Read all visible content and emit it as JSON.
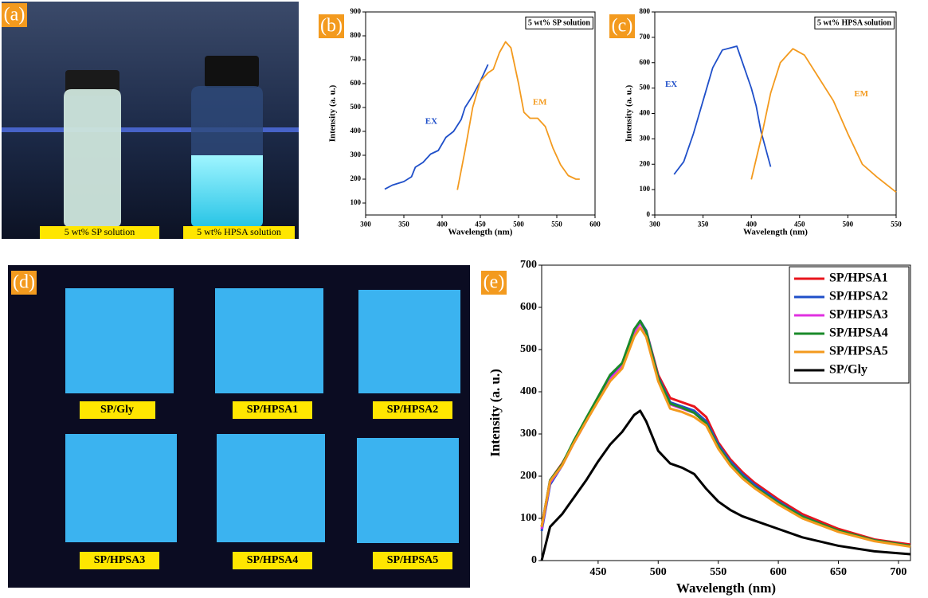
{
  "panels": [
    "(a)",
    "(b)",
    "(c)",
    "(d)",
    "(e)"
  ],
  "photo_a": {
    "captions": [
      "5 wt% SP solution",
      "5 wt% HPSA solution"
    ]
  },
  "photo_d": {
    "labels": [
      "SP/Gly",
      "SP/HPSA1",
      "SP/HPSA2",
      "SP/HPSA3",
      "SP/HPSA4",
      "SP/HPSA5"
    ]
  },
  "chart_data": [
    {
      "type": "line",
      "title": "5 wt% SP solution",
      "x_label": "Wavelength (nm)",
      "y_label": "Intensity (a. u.)",
      "xlim": [
        300,
        600
      ],
      "xticks": [
        300,
        350,
        400,
        450,
        500,
        550,
        600
      ],
      "ylim": [
        50,
        900
      ],
      "yticks": [
        100,
        200,
        300,
        400,
        500,
        600,
        700,
        800,
        900
      ],
      "series": [
        {
          "name": "EX",
          "color": "#1f4fc9",
          "x": [
            325,
            335,
            350,
            360,
            365,
            375,
            385,
            395,
            405,
            415,
            425,
            430,
            440,
            450,
            460
          ],
          "values": [
            158,
            175,
            190,
            210,
            250,
            270,
            305,
            320,
            375,
            400,
            450,
            500,
            550,
            610,
            680
          ]
        },
        {
          "name": "EM",
          "color": "#f39a1e",
          "x": [
            420,
            430,
            440,
            450,
            460,
            467,
            475,
            483,
            490,
            500,
            507,
            515,
            525,
            535,
            545,
            555,
            565,
            575,
            580
          ],
          "values": [
            155,
            320,
            500,
            610,
            645,
            660,
            730,
            775,
            750,
            600,
            480,
            455,
            455,
            420,
            330,
            260,
            215,
            200,
            200
          ]
        }
      ]
    },
    {
      "type": "line",
      "title": "5 wt% HPSA solution",
      "x_label": "Wavelength (nm)",
      "y_label": "Intensity (a. u.)",
      "xlim": [
        300,
        550
      ],
      "xticks": [
        300,
        350,
        400,
        450,
        500,
        550
      ],
      "ylim": [
        0,
        800
      ],
      "yticks": [
        0,
        100,
        200,
        300,
        400,
        500,
        600,
        700,
        800
      ],
      "series": [
        {
          "name": "EX",
          "color": "#1f4fc9",
          "x": [
            320,
            330,
            340,
            350,
            360,
            370,
            380,
            385,
            390,
            400,
            405,
            410,
            420
          ],
          "values": [
            160,
            210,
            320,
            450,
            580,
            650,
            660,
            665,
            610,
            500,
            430,
            330,
            190
          ]
        },
        {
          "name": "EM",
          "color": "#f39a1e",
          "x": [
            400,
            410,
            420,
            430,
            443,
            455,
            470,
            485,
            500,
            515,
            530,
            550
          ],
          "values": [
            140,
            300,
            480,
            600,
            655,
            630,
            540,
            450,
            320,
            200,
            150,
            90
          ]
        }
      ]
    },
    {
      "type": "line",
      "x_label": "Wavelength (nm)",
      "y_label": "Intensity (a. u.)",
      "legend": "upper right",
      "xlim": [
        403,
        710
      ],
      "xticks": [
        450,
        500,
        550,
        600,
        650,
        700
      ],
      "ylim": [
        0,
        700
      ],
      "yticks": [
        0,
        100,
        200,
        300,
        400,
        500,
        600,
        700
      ],
      "x": [
        403,
        410,
        420,
        430,
        440,
        450,
        460,
        470,
        480,
        485,
        490,
        500,
        510,
        520,
        530,
        540,
        550,
        560,
        570,
        580,
        600,
        620,
        650,
        680,
        710
      ],
      "series": [
        {
          "name": "SP/HPSA1",
          "color": "#e8141c",
          "values": [
            80,
            190,
            230,
            280,
            330,
            380,
            430,
            460,
            540,
            565,
            545,
            440,
            385,
            375,
            365,
            340,
            280,
            240,
            210,
            185,
            145,
            110,
            75,
            50,
            38
          ]
        },
        {
          "name": "SP/HPSA2",
          "color": "#1f4fc9",
          "values": [
            70,
            180,
            225,
            285,
            335,
            385,
            435,
            465,
            545,
            568,
            545,
            435,
            375,
            365,
            355,
            330,
            275,
            235,
            205,
            180,
            140,
            105,
            70,
            48,
            35
          ]
        },
        {
          "name": "SP/HPSA3",
          "color": "#e030e0",
          "values": [
            75,
            185,
            225,
            280,
            330,
            380,
            430,
            460,
            540,
            563,
            540,
            430,
            370,
            360,
            350,
            325,
            270,
            230,
            200,
            175,
            135,
            103,
            70,
            47,
            34
          ]
        },
        {
          "name": "SP/HPSA4",
          "color": "#1a8a2a",
          "values": [
            80,
            190,
            228,
            285,
            337,
            388,
            440,
            468,
            548,
            568,
            542,
            432,
            372,
            362,
            350,
            325,
            270,
            230,
            200,
            175,
            137,
            104,
            71,
            48,
            35
          ]
        },
        {
          "name": "SP/HPSA5",
          "color": "#f39a1e",
          "values": [
            80,
            188,
            225,
            280,
            330,
            378,
            425,
            455,
            530,
            552,
            530,
            425,
            360,
            352,
            340,
            320,
            265,
            225,
            195,
            172,
            133,
            100,
            68,
            46,
            33
          ]
        },
        {
          "name": "SP/Gly",
          "color": "#000000",
          "values": [
            0,
            80,
            110,
            150,
            190,
            235,
            275,
            305,
            345,
            355,
            330,
            260,
            230,
            220,
            205,
            170,
            140,
            120,
            105,
            95,
            75,
            55,
            35,
            22,
            15
          ]
        }
      ]
    }
  ]
}
